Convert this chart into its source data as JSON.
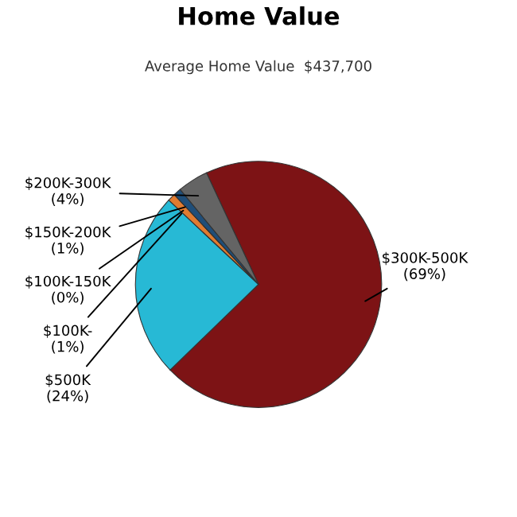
{
  "chart_data": {
    "type": "pie",
    "title": "Home Value",
    "subtitle": "Average Home Value  $437,700",
    "categories": [
      "$300K-500K",
      "$500K",
      "$100K-",
      "$100K-150K",
      "$150K-200K",
      "$200K-300K"
    ],
    "values": [
      69,
      24,
      1,
      0,
      1,
      4
    ],
    "value_labels": [
      "(69%)",
      "(24%)",
      "(1%)",
      "(0%)",
      "(1%)",
      "(4%)"
    ],
    "colors": [
      "#7d1315",
      "#27b9d5",
      "#e07b30",
      "#d9b43a",
      "#1f4e79",
      "#646464"
    ]
  }
}
